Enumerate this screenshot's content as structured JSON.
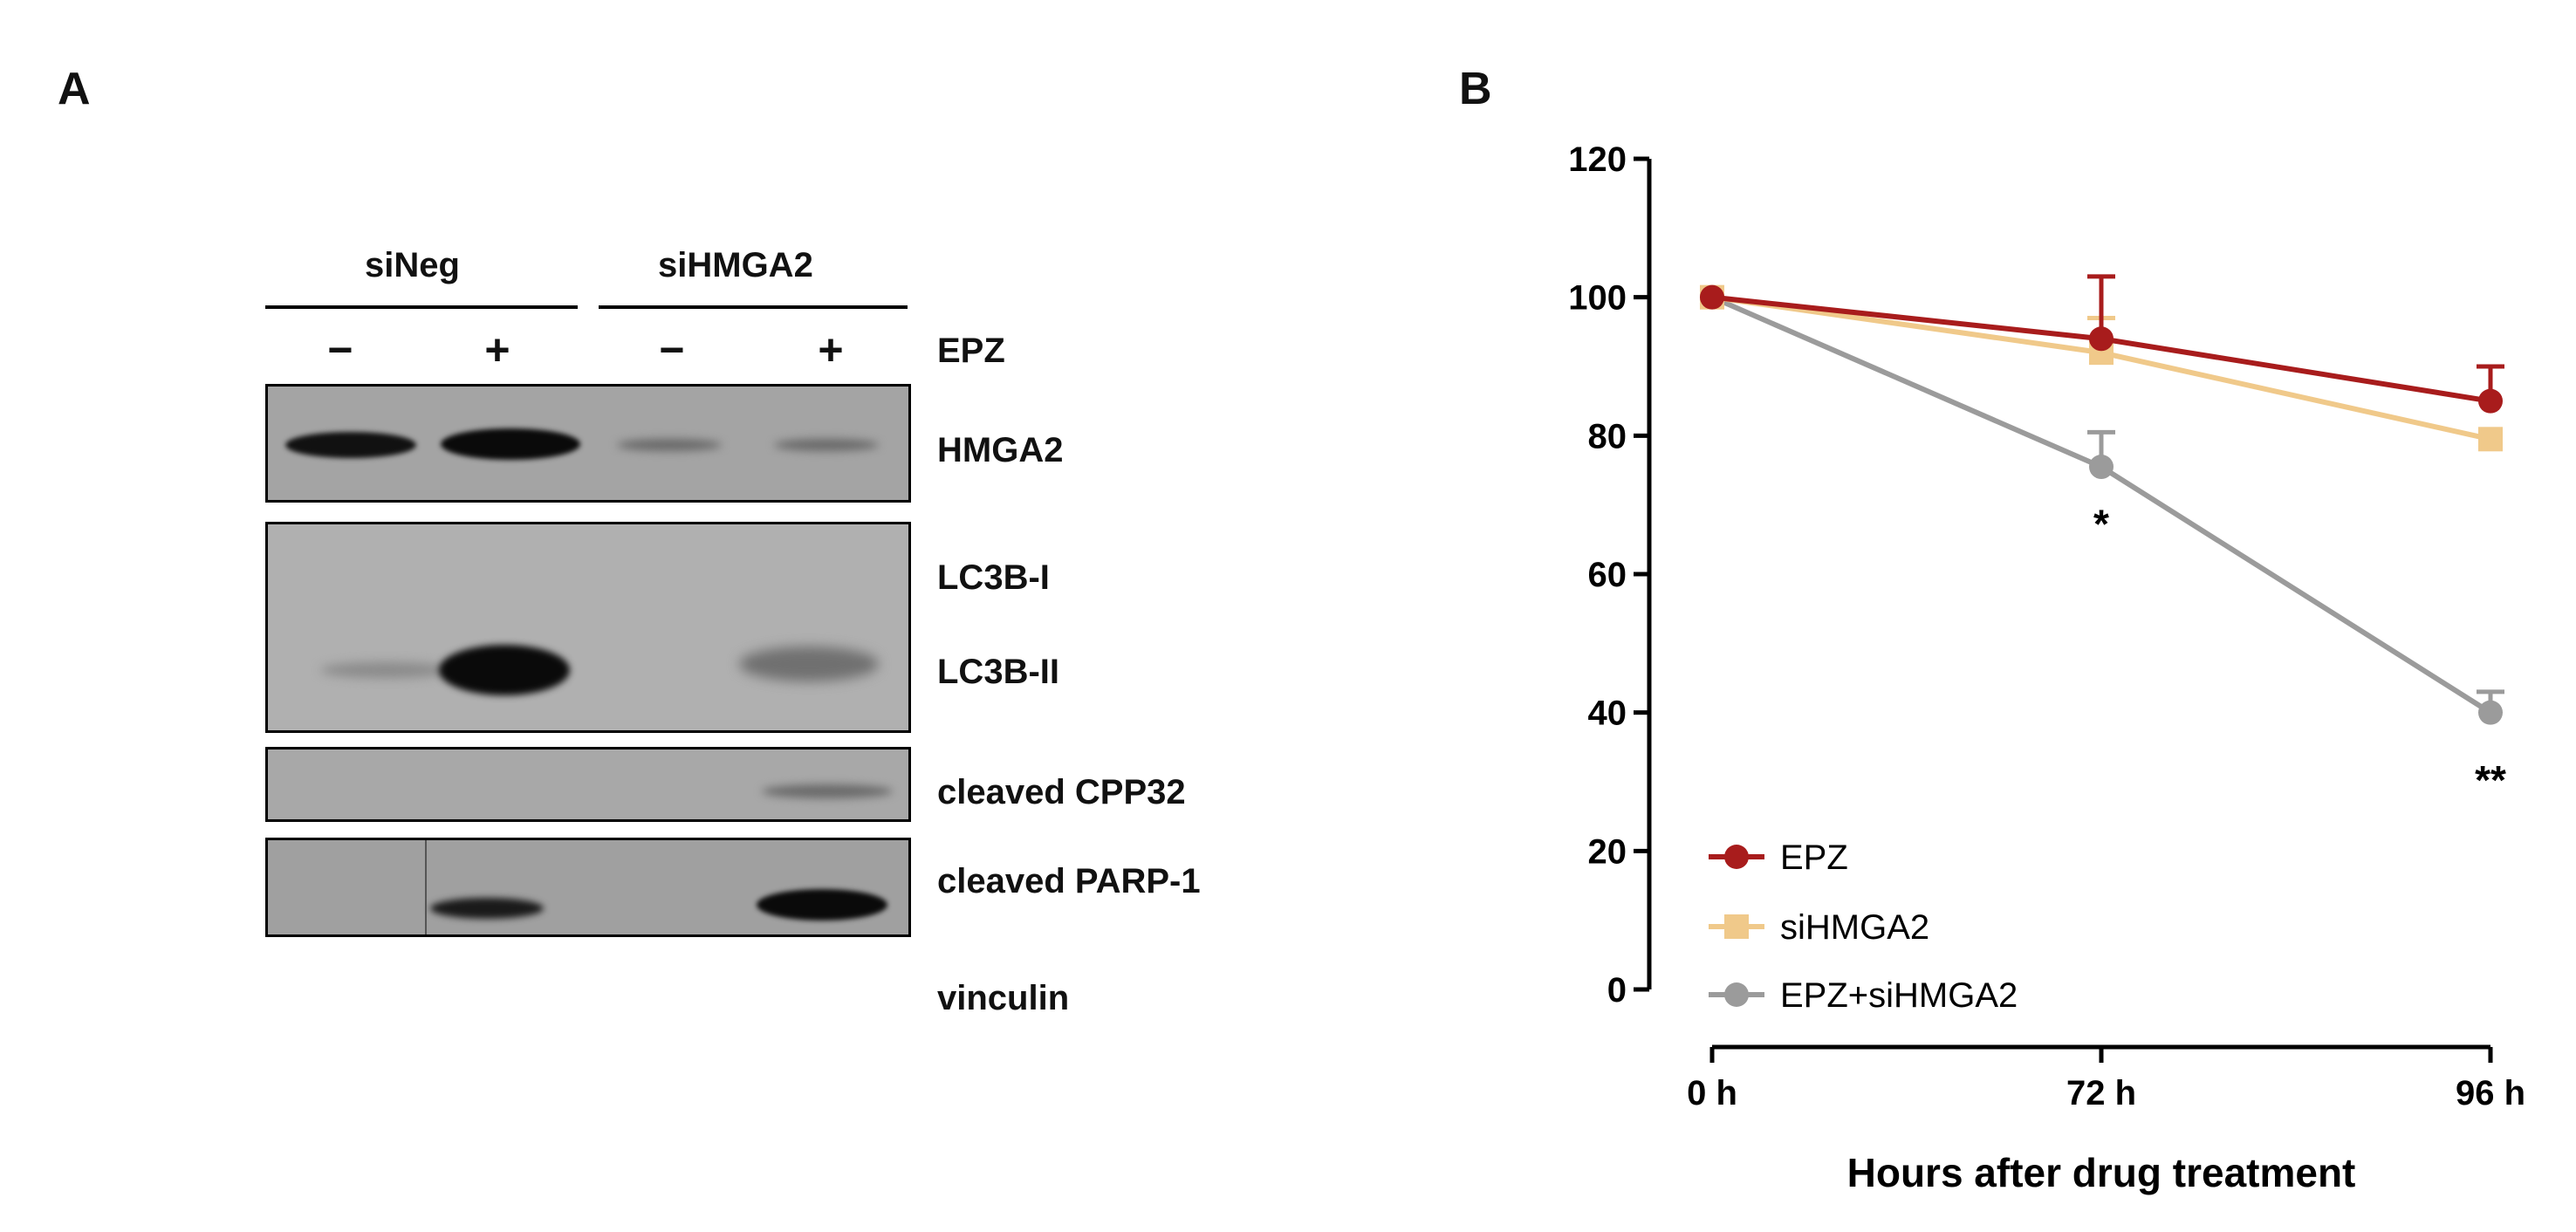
{
  "panel_a": {
    "letter": "A",
    "groups": [
      "siNeg",
      "siHMGA2"
    ],
    "treatment_signs": [
      "−",
      "+",
      "−",
      "+"
    ],
    "treatment_label": "EPZ",
    "rows": [
      {
        "label": "HMGA2"
      },
      {
        "label": "LC3B-I"
      },
      {
        "label": "LC3B-II"
      },
      {
        "label": "cleaved CPP32"
      },
      {
        "label": "cleaved PARP-1"
      },
      {
        "label": "vinculin"
      }
    ]
  },
  "panel_b": {
    "letter": "B",
    "annotations": [
      {
        "text": "*",
        "x": "72 h",
        "y": 67
      },
      {
        "text": "**",
        "x": "96 h",
        "y": 30
      }
    ]
  },
  "chart_data": {
    "type": "line",
    "title": "",
    "xlabel": "Hours after drug treatment",
    "ylabel": "",
    "categories": [
      "0 h",
      "72 h",
      "96 h"
    ],
    "ylim": [
      0,
      120
    ],
    "yticks": [
      0,
      20,
      40,
      60,
      80,
      100,
      120
    ],
    "legend_position": "bottom-left",
    "grid": false,
    "series": [
      {
        "name": "EPZ",
        "values": [
          100,
          94,
          85
        ],
        "errors": [
          0,
          9,
          5
        ],
        "color": "#a81c1c",
        "marker": "circle"
      },
      {
        "name": "siHMGA2",
        "values": [
          100,
          92,
          79.5
        ],
        "errors": [
          0,
          5,
          0
        ],
        "color": "#f0c98a",
        "marker": "square"
      },
      {
        "name": "EPZ+siHMGA2",
        "values": [
          100,
          75.5,
          40
        ],
        "errors": [
          0,
          5,
          3
        ],
        "color": "#9b9b9b",
        "marker": "circle"
      }
    ]
  }
}
